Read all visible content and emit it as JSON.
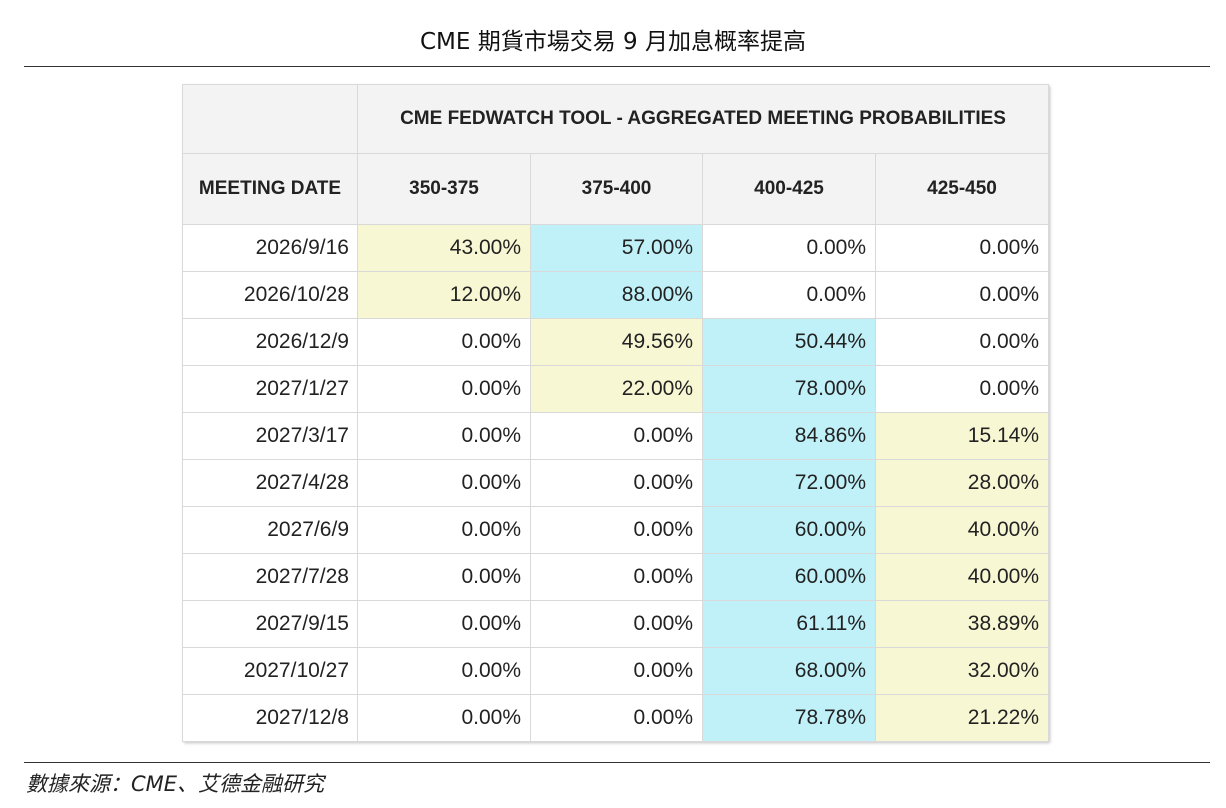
{
  "page": {
    "title": "CME 期貨市場交易 9 月加息概率提高",
    "source": "數據來源：CME、艾德金融研究"
  },
  "colors": {
    "highlight_low": "#f7f7d4",
    "highlight_high": "#c0f0f8"
  },
  "chart_data": {
    "type": "table",
    "title": "CME FEDWATCH TOOL - AGGREGATED MEETING PROBABILITIES",
    "row_header": "MEETING DATE",
    "columns": [
      "350-375",
      "375-400",
      "400-425",
      "425-450"
    ],
    "rows": [
      {
        "date": "2026/9/16",
        "values": [
          "43.00%",
          "57.00%",
          "0.00%",
          "0.00%"
        ],
        "shading": [
          "y",
          "c",
          "",
          ""
        ]
      },
      {
        "date": "2026/10/28",
        "values": [
          "12.00%",
          "88.00%",
          "0.00%",
          "0.00%"
        ],
        "shading": [
          "y",
          "c",
          "",
          ""
        ]
      },
      {
        "date": "2026/12/9",
        "values": [
          "0.00%",
          "49.56%",
          "50.44%",
          "0.00%"
        ],
        "shading": [
          "",
          "y",
          "c",
          ""
        ]
      },
      {
        "date": "2027/1/27",
        "values": [
          "0.00%",
          "22.00%",
          "78.00%",
          "0.00%"
        ],
        "shading": [
          "",
          "y",
          "c",
          ""
        ]
      },
      {
        "date": "2027/3/17",
        "values": [
          "0.00%",
          "0.00%",
          "84.86%",
          "15.14%"
        ],
        "shading": [
          "",
          "",
          "c",
          "y"
        ]
      },
      {
        "date": "2027/4/28",
        "values": [
          "0.00%",
          "0.00%",
          "72.00%",
          "28.00%"
        ],
        "shading": [
          "",
          "",
          "c",
          "y"
        ]
      },
      {
        "date": "2027/6/9",
        "values": [
          "0.00%",
          "0.00%",
          "60.00%",
          "40.00%"
        ],
        "shading": [
          "",
          "",
          "c",
          "y"
        ]
      },
      {
        "date": "2027/7/28",
        "values": [
          "0.00%",
          "0.00%",
          "60.00%",
          "40.00%"
        ],
        "shading": [
          "",
          "",
          "c",
          "y"
        ]
      },
      {
        "date": "2027/9/15",
        "values": [
          "0.00%",
          "0.00%",
          "61.11%",
          "38.89%"
        ],
        "shading": [
          "",
          "",
          "c",
          "y"
        ]
      },
      {
        "date": "2027/10/27",
        "values": [
          "0.00%",
          "0.00%",
          "68.00%",
          "32.00%"
        ],
        "shading": [
          "",
          "",
          "c",
          "y"
        ]
      },
      {
        "date": "2027/12/8",
        "values": [
          "0.00%",
          "0.00%",
          "78.78%",
          "21.22%"
        ],
        "shading": [
          "",
          "",
          "c",
          "y"
        ]
      }
    ]
  }
}
